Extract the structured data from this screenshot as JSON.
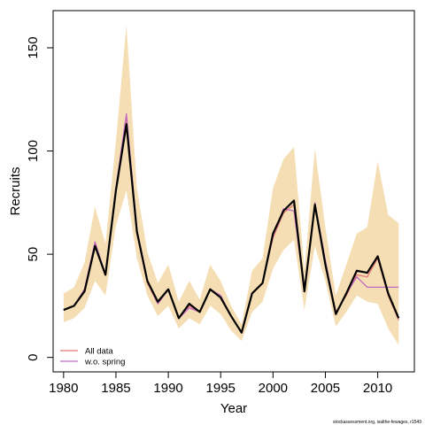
{
  "chart_data": {
    "type": "line",
    "xlabel": "Year",
    "ylabel": "Recruits",
    "xlim": [
      1979.0,
      2013.5
    ],
    "ylim": [
      -7,
      168
    ],
    "xticks": [
      1980,
      1985,
      1990,
      1995,
      2000,
      2005,
      2010
    ],
    "yticks": [
      0,
      50,
      100,
      150
    ],
    "x": [
      1980,
      1981,
      1982,
      1983,
      1984,
      1985,
      1986,
      1987,
      1988,
      1989,
      1990,
      1991,
      1992,
      1993,
      1994,
      1995,
      1996,
      1997,
      1998,
      1999,
      2000,
      2001,
      2002,
      2003,
      2004,
      2005,
      2006,
      2007,
      2008,
      2009,
      2010,
      2011,
      2012
    ],
    "band": {
      "color": "#f5deb3",
      "lower": [
        17,
        19,
        24,
        37,
        30,
        64,
        81,
        48,
        30,
        20,
        25,
        14,
        19,
        16,
        25,
        21,
        13,
        8,
        22,
        27,
        43,
        52,
        57,
        23,
        54,
        37,
        15,
        22,
        30,
        27,
        26,
        14,
        6
      ],
      "upper": [
        31,
        34,
        46,
        73,
        55,
        105,
        161,
        82,
        51,
        36,
        45,
        27,
        37,
        28,
        45,
        37,
        25,
        16,
        42,
        48,
        82,
        96,
        102,
        42,
        101,
        63,
        30,
        45,
        60,
        63,
        95,
        69,
        65
      ]
    },
    "series": [
      {
        "name": "All data",
        "color": "#e8777a",
        "values": [
          23,
          25,
          33,
          55,
          40,
          82,
          115,
          60,
          36,
          26,
          33,
          19,
          25,
          22,
          33,
          30,
          20,
          12,
          31,
          36,
          58,
          70,
          74,
          33,
          74,
          46,
          22,
          30,
          40,
          39,
          48,
          30,
          18
        ]
      },
      {
        "name": "w.o. spring",
        "color": "#c06ac2",
        "values": [
          23,
          25,
          33,
          56,
          40,
          82,
          118,
          62,
          37,
          26,
          33,
          19,
          24,
          22,
          33,
          30,
          20,
          12,
          31,
          36,
          59,
          72,
          71,
          32,
          75,
          47,
          21,
          31,
          39,
          34,
          34,
          34,
          34
        ]
      },
      {
        "name": "",
        "color": "#000000",
        "values": [
          23,
          25,
          32,
          54,
          40,
          81,
          113,
          61,
          37,
          27,
          33,
          19,
          26,
          22,
          33,
          29,
          20,
          12,
          31,
          36,
          60,
          71,
          76,
          32,
          74,
          45,
          21,
          31,
          42,
          41,
          49,
          31,
          19
        ]
      }
    ],
    "legend": {
      "placement": "bottom-left",
      "entries": [
        "All data",
        "w.o. spring"
      ]
    },
    "credit": "stockassessment.org, isalthe-fewages, r1549",
    "grid": false
  }
}
